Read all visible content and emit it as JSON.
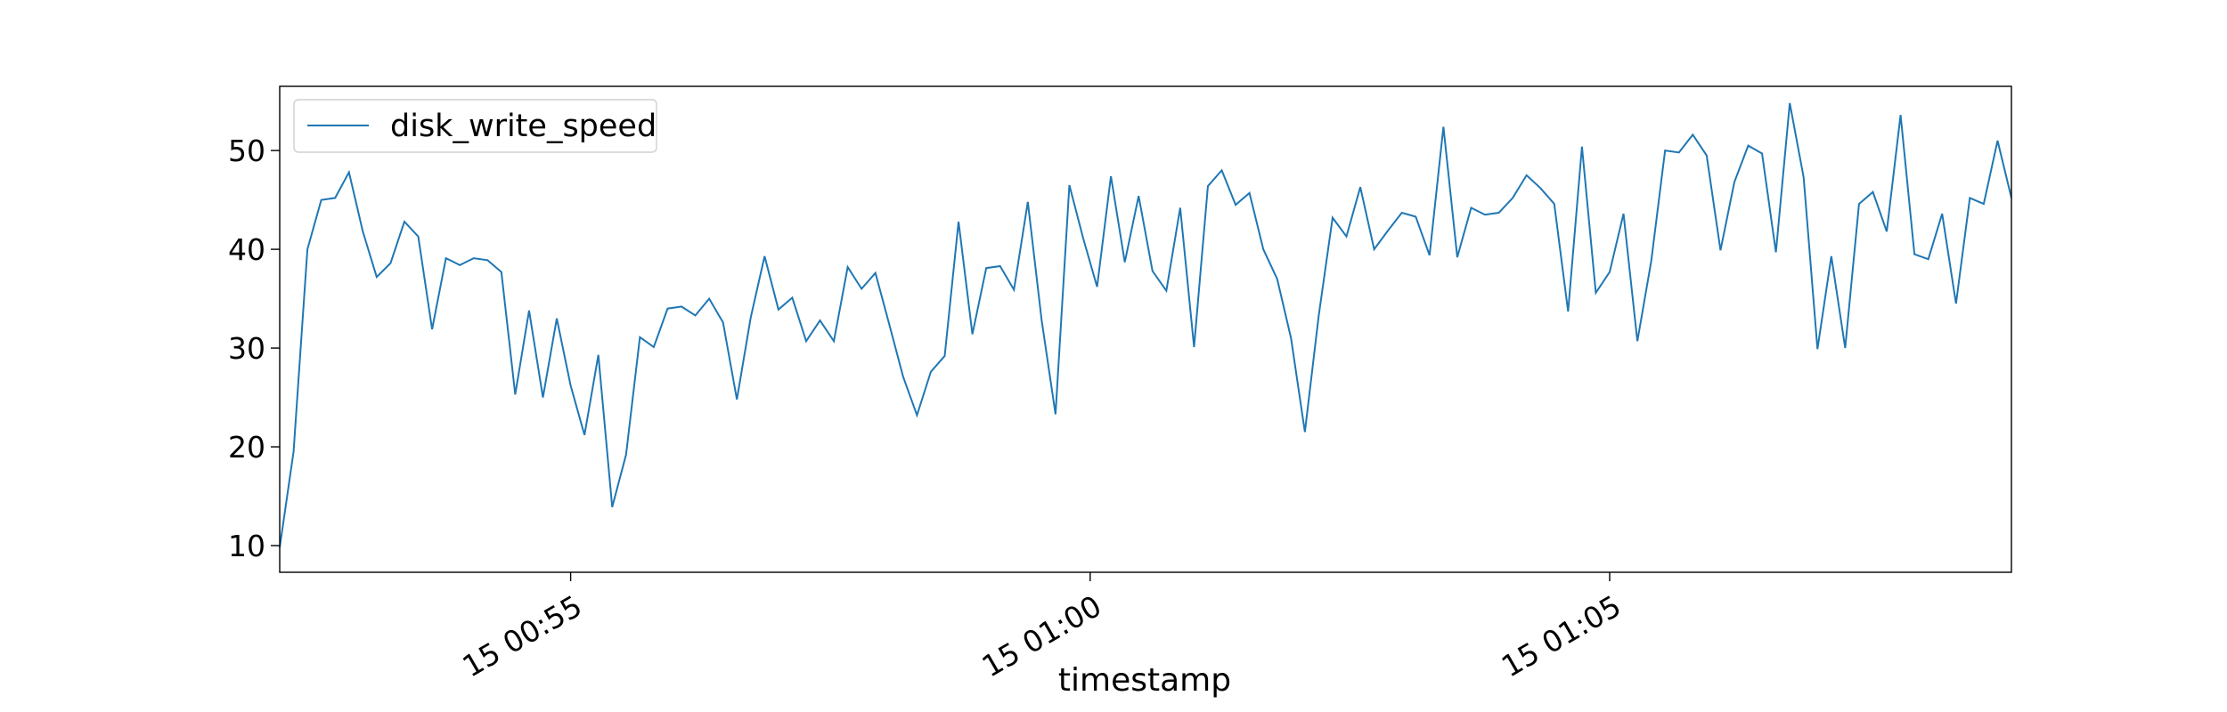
{
  "chart_data": {
    "type": "line",
    "xlabel": "timestamp",
    "ylabel": "",
    "ylim": [
      7.3,
      56.5
    ],
    "xlim": [
      "00:52:12",
      "01:08:52"
    ],
    "yticks": [
      10,
      20,
      30,
      40,
      50
    ],
    "xticks": [
      {
        "time": "00:55:00",
        "label": "15 00:55"
      },
      {
        "time": "01:00:00",
        "label": "15 01:00"
      },
      {
        "time": "01:05:00",
        "label": "15 01:05"
      }
    ],
    "x_start": "00:52:12",
    "x_step_seconds": 8,
    "legend": {
      "position": "top-left"
    },
    "series": [
      {
        "name": "disk_write_speed",
        "color": "#1f77b4",
        "values": [
          9.8,
          19.5,
          40.0,
          45.0,
          45.2,
          47.8,
          41.8,
          37.2,
          38.6,
          42.8,
          41.3,
          31.9,
          39.1,
          38.4,
          39.1,
          38.9,
          37.7,
          25.3,
          33.8,
          25.0,
          33.0,
          26.2,
          21.2,
          29.3,
          13.9,
          19.2,
          31.1,
          30.1,
          34.0,
          34.2,
          33.3,
          35.0,
          32.6,
          24.8,
          33.1,
          39.3,
          33.9,
          35.1,
          30.7,
          32.8,
          30.7,
          38.2,
          36.0,
          37.6,
          32.4,
          27.1,
          23.2,
          27.6,
          29.2,
          42.8,
          31.4,
          38.1,
          38.3,
          35.9,
          44.8,
          32.8,
          23.3,
          46.5,
          41.1,
          36.2,
          47.4,
          38.7,
          45.4,
          37.8,
          35.8,
          44.2,
          30.1,
          46.4,
          48.0,
          44.5,
          45.7,
          40.0,
          37.0,
          31.0,
          21.5,
          33.3,
          43.2,
          41.3,
          46.3,
          40.0,
          41.9,
          43.7,
          43.3,
          39.4,
          52.4,
          39.2,
          44.2,
          43.5,
          43.7,
          45.2,
          47.5,
          46.2,
          44.6,
          33.7,
          50.4,
          35.6,
          37.7,
          43.6,
          30.7,
          38.8,
          50.0,
          49.8,
          51.6,
          49.5,
          39.9,
          46.8,
          50.5,
          49.7,
          39.7,
          54.8,
          47.3,
          29.9,
          39.3,
          30.0,
          44.6,
          45.8,
          41.8,
          53.6,
          39.5,
          39.0,
          43.6,
          34.5,
          45.2,
          44.6,
          51.0,
          45.2
        ]
      }
    ]
  }
}
